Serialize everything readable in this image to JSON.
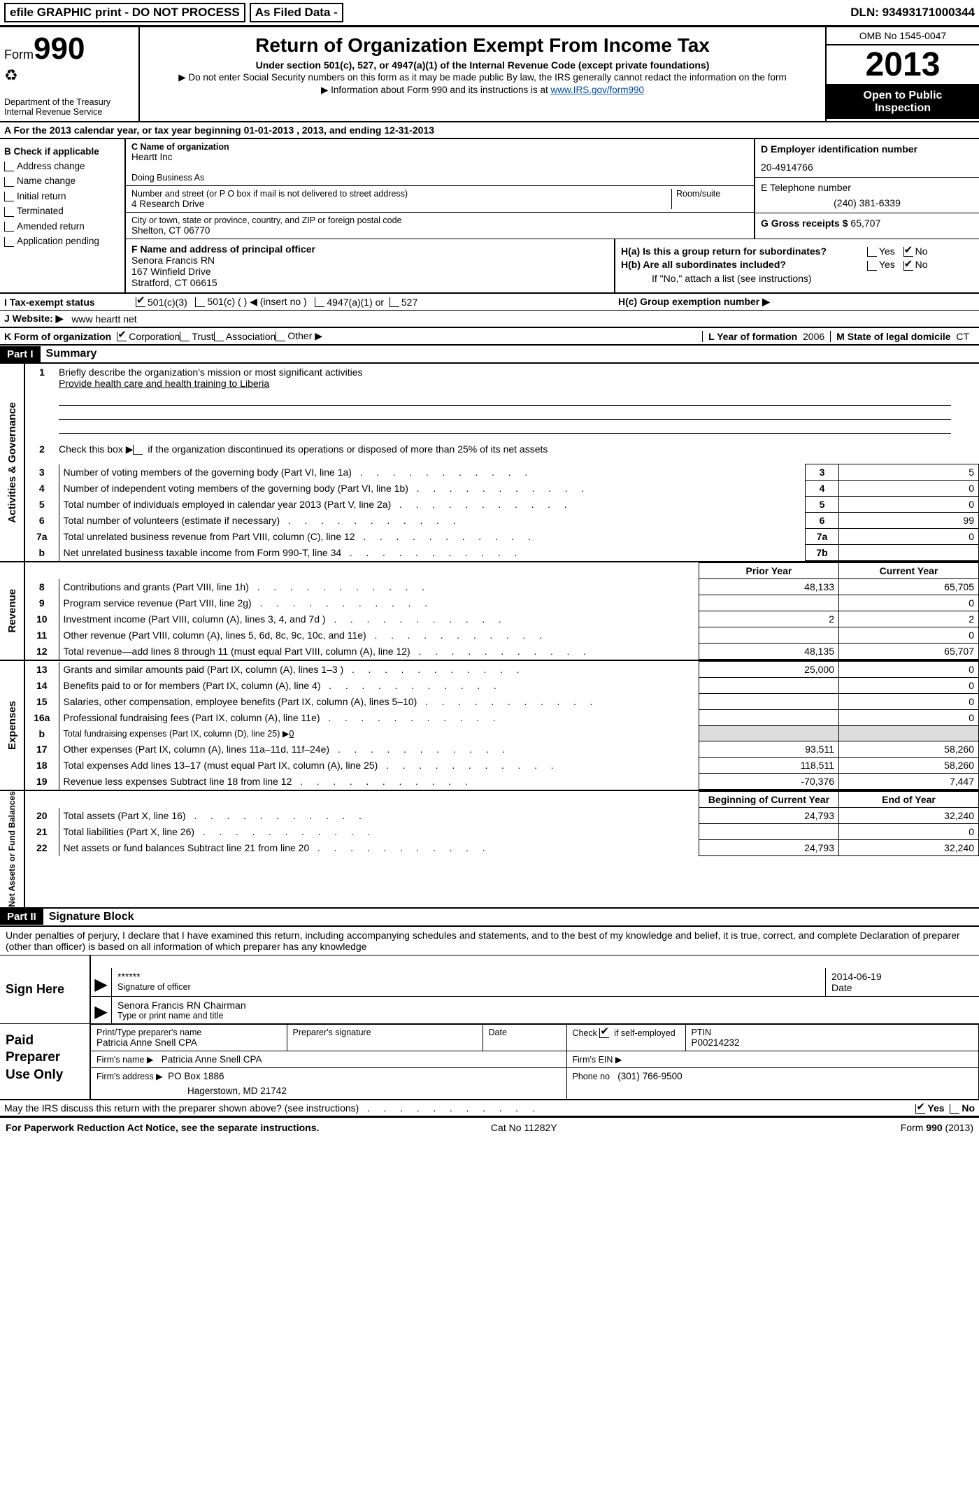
{
  "top": {
    "efile": "efile GRAPHIC print - DO NOT PROCESS",
    "asfiled": "As Filed Data -",
    "dln_lbl": "DLN:",
    "dln": "93493171000344"
  },
  "header": {
    "form": "Form",
    "num": "990",
    "dept": "Department of the Treasury",
    "irs": "Internal Revenue Service",
    "title": "Return of Organization Exempt From Income Tax",
    "sub1": "Under section 501(c), 527, or 4947(a)(1) of the Internal Revenue Code (except private foundations)",
    "sub2": "▶ Do not enter Social Security numbers on this form as it may be made public  By law, the IRS generally cannot redact the information on the form",
    "sub3_pre": "▶ Information about Form 990 and its instructions is at ",
    "sub3_link": "www.IRS.gov/form990",
    "omb": "OMB No  1545-0047",
    "year": "2013",
    "open1": "Open to Public",
    "open2": "Inspection"
  },
  "rowA": "A  For the 2013 calendar year, or tax year beginning 01-01-2013     , 2013, and ending 12-31-2013",
  "B": {
    "lbl": "B  Check if applicable",
    "items": [
      "Address change",
      "Name change",
      "Initial return",
      "Terminated",
      "Amended return",
      "Application pending"
    ]
  },
  "C": {
    "name_lbl": "C Name of organization",
    "name": "Heartt Inc",
    "dba_lbl": "Doing Business As",
    "addr_lbl": "Number and street (or P O  box if mail is not delivered to street address)",
    "room_lbl": "Room/suite",
    "addr": "4 Research Drive",
    "city_lbl": "City or town, state or province, country, and ZIP or foreign postal code",
    "city": "Shelton, CT  06770"
  },
  "D": {
    "lbl": "D Employer identification number",
    "val": "20-4914766"
  },
  "E": {
    "lbl": "E Telephone number",
    "val": "(240) 381-6339"
  },
  "G": {
    "lbl": "G Gross receipts $",
    "val": "65,707"
  },
  "F": {
    "lbl": "F    Name and address of principal officer",
    "l1": "Senora Francis RN",
    "l2": "167 Winfield Drive",
    "l3": "Stratford, CT  06615"
  },
  "H": {
    "a": "H(a)  Is this a group return for subordinates?",
    "b": "H(b)  Are all subordinates included?",
    "b2": "If \"No,\" attach a list  (see instructions)",
    "c": "H(c)   Group exemption number ▶",
    "yes": "Yes",
    "no": "No"
  },
  "I": {
    "lbl": "I    Tax-exempt status",
    "o1": "501(c)(3)",
    "o2": "501(c) (   ) ◀ (insert no )",
    "o3": "4947(a)(1) or",
    "o4": "527"
  },
  "J": {
    "lbl": "J   Website: ▶",
    "val": "www heartt net"
  },
  "K": {
    "lbl": "K Form of organization",
    "o1": "Corporation",
    "o2": "Trust",
    "o3": "Association",
    "o4": "Other ▶"
  },
  "L": {
    "lbl": "L Year of formation",
    "val": "2006"
  },
  "M": {
    "lbl": "M State of legal domicile",
    "val": "CT"
  },
  "part1": {
    "hdr": "Part I",
    "title": "Summary"
  },
  "gov": {
    "label": "Activities & Governance",
    "l1": "Briefly describe the organization's mission or most significant activities",
    "l1v": "Provide health care and health training to Liberia",
    "l2": "Check this box ▶        if the organization discontinued its operations or disposed of more than 25% of its net assets",
    "rows": [
      {
        "n": "3",
        "t": "Number of voting members of the governing body (Part VI, line 1a)",
        "ln": "3",
        "v": "5"
      },
      {
        "n": "4",
        "t": "Number of independent voting members of the governing body (Part VI, line 1b)",
        "ln": "4",
        "v": "0"
      },
      {
        "n": "5",
        "t": "Total number of individuals employed in calendar year 2013 (Part V, line 2a)",
        "ln": "5",
        "v": "0"
      },
      {
        "n": "6",
        "t": "Total number of volunteers (estimate if necessary)",
        "ln": "6",
        "v": "99"
      },
      {
        "n": "7a",
        "t": "Total unrelated business revenue from Part VIII, column (C), line 12",
        "ln": "7a",
        "v": "0"
      },
      {
        "n": "b",
        "t": "Net unrelated business taxable income from Form 990-T, line 34",
        "ln": "7b",
        "v": ""
      }
    ]
  },
  "rev": {
    "label": "Revenue",
    "prior": "Prior Year",
    "current": "Current Year",
    "rows": [
      {
        "n": "8",
        "t": "Contributions and grants (Part VIII, line 1h)",
        "p": "48,133",
        "c": "65,705"
      },
      {
        "n": "9",
        "t": "Program service revenue (Part VIII, line 2g)",
        "p": "",
        "c": "0"
      },
      {
        "n": "10",
        "t": "Investment income (Part VIII, column (A), lines 3, 4, and 7d )",
        "p": "2",
        "c": "2"
      },
      {
        "n": "11",
        "t": "Other revenue (Part VIII, column (A), lines 5, 6d, 8c, 9c, 10c, and 11e)",
        "p": "",
        "c": "0"
      },
      {
        "n": "12",
        "t": "Total revenue—add lines 8 through 11 (must equal Part VIII, column (A), line 12)",
        "p": "48,135",
        "c": "65,707"
      }
    ]
  },
  "exp": {
    "label": "Expenses",
    "rows": [
      {
        "n": "13",
        "t": "Grants and similar amounts paid (Part IX, column (A), lines 1–3 )",
        "p": "25,000",
        "c": "0"
      },
      {
        "n": "14",
        "t": "Benefits paid to or for members (Part IX, column (A), line 4)",
        "p": "",
        "c": "0"
      },
      {
        "n": "15",
        "t": "Salaries, other compensation, employee benefits (Part IX, column (A), lines 5–10)",
        "p": "",
        "c": "0"
      },
      {
        "n": "16a",
        "t": "Professional fundraising fees (Part IX, column (A), line 11e)",
        "p": "",
        "c": "0"
      },
      {
        "n": "b",
        "t": "Total fundraising expenses (Part IX, column (D), line 25) ▶",
        "p": "grey",
        "c": "grey",
        "fund": "0"
      },
      {
        "n": "17",
        "t": "Other expenses (Part IX, column (A), lines 11a–11d, 11f–24e)",
        "p": "93,511",
        "c": "58,260"
      },
      {
        "n": "18",
        "t": "Total expenses  Add lines 13–17 (must equal Part IX, column (A), line 25)",
        "p": "118,511",
        "c": "58,260"
      },
      {
        "n": "19",
        "t": "Revenue less expenses  Subtract line 18 from line 12",
        "p": "-70,376",
        "c": "7,447"
      }
    ]
  },
  "net": {
    "label": "Net Assets or Fund Balances",
    "beg": "Beginning of Current Year",
    "end": "End of Year",
    "rows": [
      {
        "n": "20",
        "t": "Total assets (Part X, line 16)",
        "p": "24,793",
        "c": "32,240"
      },
      {
        "n": "21",
        "t": "Total liabilities (Part X, line 26)",
        "p": "",
        "c": "0"
      },
      {
        "n": "22",
        "t": "Net assets or fund balances  Subtract line 21 from line 20",
        "p": "24,793",
        "c": "32,240"
      }
    ]
  },
  "part2": {
    "hdr": "Part II",
    "title": "Signature Block"
  },
  "perjury": "Under penalties of perjury, I declare that I have examined this return, including accompanying schedules and statements, and to the best of my knowledge and belief, it is true, correct, and complete  Declaration of preparer (other than officer) is based on all information of which preparer has any knowledge",
  "sign": {
    "here_lbl": "Sign Here",
    "stars": "******",
    "sig_lbl": "Signature of officer",
    "date": "2014-06-19",
    "date_lbl": "Date",
    "name": "Senora Francis RN Chairman",
    "name_lbl": "Type or print name and title"
  },
  "paid": {
    "lbl": "Paid Preparer Use Only",
    "r1": {
      "pt_lbl": "Print/Type preparer's name",
      "pt": "Patricia Anne Snell CPA",
      "sig_lbl": "Preparer's signature",
      "date_lbl": "Date",
      "chk_lbl": "Check          if self-employed",
      "ptin_lbl": "PTIN",
      "ptin": "P00214232"
    },
    "r2": {
      "firm_lbl": "Firm's name      ▶",
      "firm": "Patricia Anne Snell CPA",
      "ein_lbl": "Firm's EIN ▶"
    },
    "r3": {
      "addr_lbl": "Firm's address ▶",
      "addr1": "PO Box 1886",
      "addr2": "Hagerstown, MD  21742",
      "phone_lbl": "Phone no",
      "phone": "(301) 766-9500"
    }
  },
  "discuss": "May the IRS discuss this return with the preparer shown above? (see instructions)",
  "discuss_yes": "Yes",
  "discuss_no": "No",
  "footer": {
    "l": "For Paperwork Reduction Act Notice, see the separate instructions.",
    "m": "Cat No  11282Y",
    "r": "Form 990 (2013)"
  },
  "colors": {
    "black": "#000000",
    "white": "#ffffff",
    "link": "#004b9b",
    "grey": "#dddddd"
  }
}
